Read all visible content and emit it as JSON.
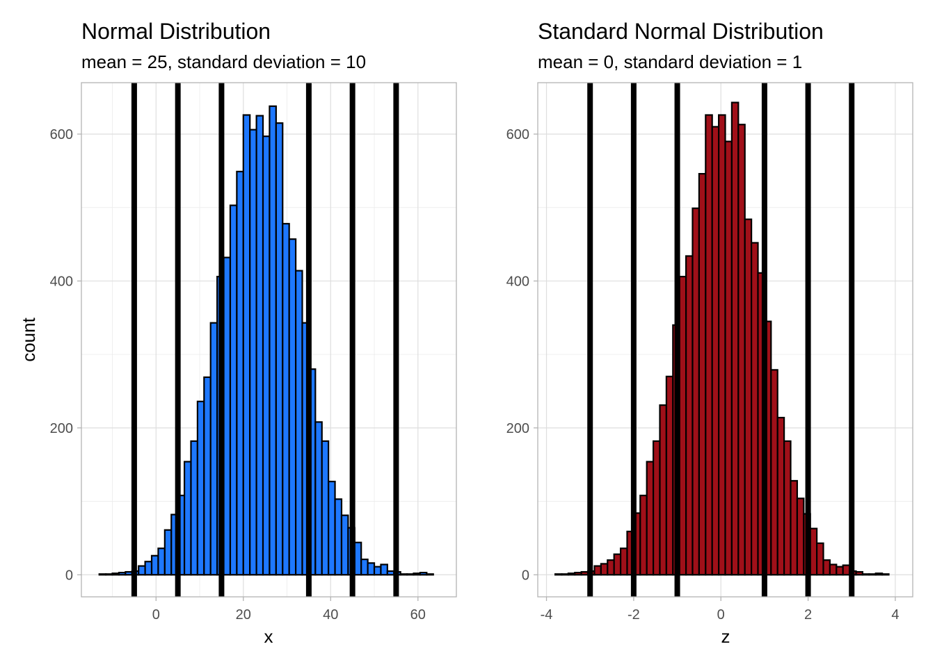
{
  "chart_data": [
    {
      "type": "bar",
      "title": "Normal Distribution",
      "subtitle": "mean = 25, standard deviation = 10",
      "xlabel": "x",
      "ylabel": "count",
      "xlim": [
        -17.1,
        68.8
      ],
      "ylim": [
        -30,
        670
      ],
      "x_ticks": [
        0,
        20,
        40,
        60
      ],
      "x_tick_labels": [
        "0",
        "20",
        "40",
        "60"
      ],
      "y_ticks": [
        0,
        200,
        400,
        600
      ],
      "y_tick_labels": [
        "0",
        "200",
        "400",
        "600"
      ],
      "grid": true,
      "fill_color": "#1e78ff",
      "bin_start": -13,
      "bin_width": 1.5,
      "values": [
        1,
        1,
        2,
        3,
        4,
        5,
        12,
        18,
        26,
        36,
        61,
        82,
        108,
        154,
        182,
        236,
        269,
        343,
        406,
        432,
        503,
        549,
        626,
        606,
        625,
        597,
        638,
        615,
        478,
        457,
        414,
        343,
        280,
        208,
        182,
        127,
        103,
        81,
        64,
        44,
        21,
        16,
        11,
        14,
        5,
        4,
        1,
        1,
        2,
        3,
        1
      ],
      "vlines": [
        -5,
        5,
        15,
        35,
        45,
        55
      ]
    },
    {
      "type": "bar",
      "title": "Standard Normal Distribution",
      "subtitle": "mean = 0, standard deviation = 1",
      "xlabel": "z",
      "ylabel": "",
      "xlim": [
        -4.2,
        4.4
      ],
      "ylim": [
        -30,
        670
      ],
      "x_ticks": [
        -4,
        -2,
        0,
        2,
        4
      ],
      "x_tick_labels": [
        "-4",
        "-2",
        "0",
        "2",
        "4"
      ],
      "y_ticks": [
        0,
        200,
        400,
        600
      ],
      "y_tick_labels": [
        "0",
        "200",
        "400",
        "600"
      ],
      "grid": true,
      "fill_color": "#a01019",
      "bin_start": -3.8,
      "bin_width": 0.15,
      "values": [
        1,
        1,
        2,
        3,
        4,
        5,
        12,
        15,
        20,
        28,
        36,
        59,
        84,
        108,
        154,
        182,
        231,
        270,
        340,
        406,
        434,
        499,
        546,
        626,
        610,
        626,
        590,
        643,
        613,
        484,
        452,
        411,
        345,
        279,
        214,
        182,
        128,
        104,
        83,
        63,
        43,
        20,
        14,
        11,
        13,
        5,
        4,
        1,
        1,
        2,
        1
      ],
      "vlines": [
        -3,
        -2,
        -1,
        1,
        2,
        3
      ]
    }
  ]
}
